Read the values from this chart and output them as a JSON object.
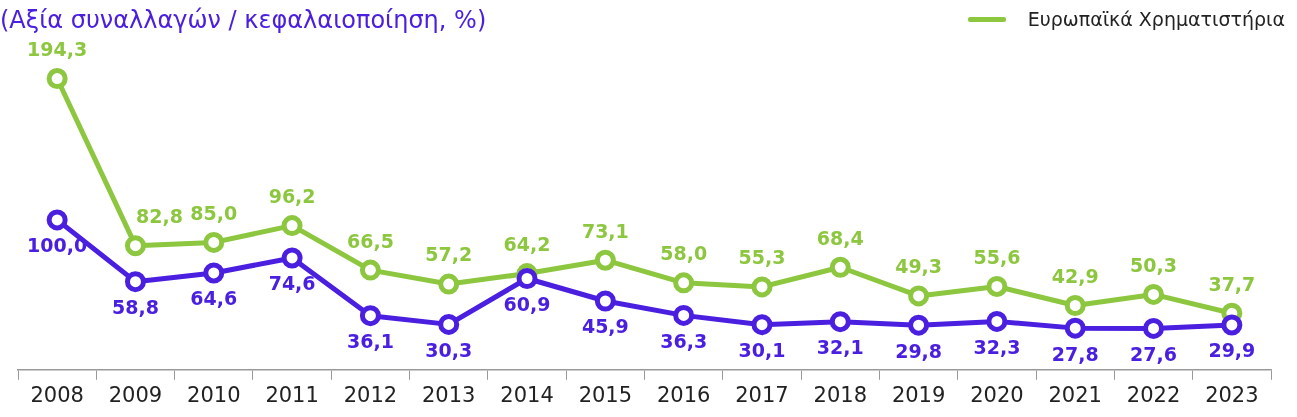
{
  "chart_data": {
    "type": "line",
    "subtitle": "(Αξία συναλλαγών / κεφαλαιοποίηση, %)",
    "categories": [
      "2008",
      "2009",
      "2010",
      "2011",
      "2012",
      "2013",
      "2014",
      "2015",
      "2016",
      "2017",
      "2018",
      "2019",
      "2020",
      "2021",
      "2022",
      "2023"
    ],
    "series": [
      {
        "color": "#4a1fe0",
        "values": [
          100.0,
          58.8,
          64.6,
          74.6,
          36.1,
          30.3,
          60.9,
          45.9,
          36.3,
          30.1,
          32.1,
          29.8,
          32.3,
          27.8,
          27.6,
          29.9
        ],
        "value_labels": [
          "100,0",
          "58,8",
          "64,6",
          "74,6",
          "36,1",
          "30,3",
          "60,9",
          "45,9",
          "36,3",
          "30,1",
          "32,1",
          "29,8",
          "32,3",
          "27,8",
          "27,6",
          "29,9"
        ]
      },
      {
        "name": "Ευρωπαϊκά Χρηματιστήρια",
        "color": "#8dc63f",
        "values": [
          194.3,
          82.8,
          85.0,
          96.2,
          66.5,
          57.2,
          64.2,
          73.1,
          58.0,
          55.3,
          68.4,
          49.3,
          55.6,
          42.9,
          50.3,
          37.7
        ],
        "value_labels": [
          "194,3",
          "82,8",
          "85,0",
          "96,2",
          "66,5",
          "57,2",
          "64,2",
          "73,1",
          "58,0",
          "55,3",
          "68,4",
          "49,3",
          "55,6",
          "42,9",
          "50,3",
          "37,7"
        ]
      }
    ],
    "tick_labels": "x",
    "grid": false,
    "legend": "top right",
    "marker": "circle",
    "line_style": "solid"
  }
}
